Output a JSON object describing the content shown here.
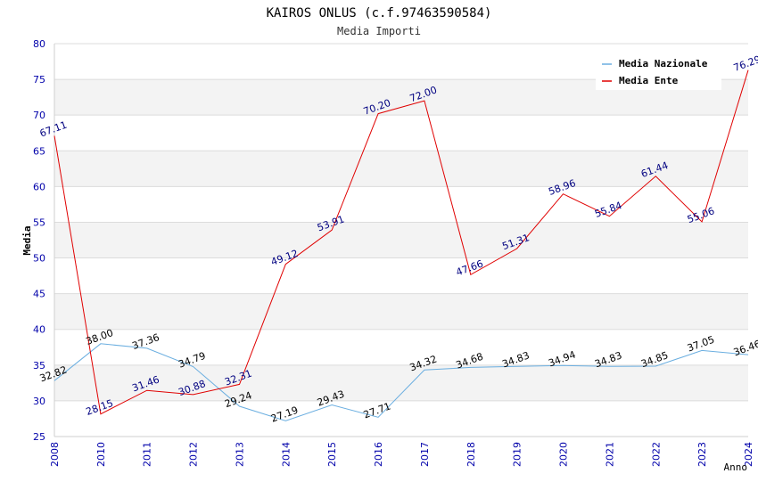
{
  "chart_data": {
    "type": "line",
    "title": "KAIROS ONLUS (c.f.97463590584)",
    "subtitle": "Media Importi",
    "ylabel": "Media",
    "xlabel": "Anno",
    "ylim": [
      25,
      80
    ],
    "yticks": [
      25,
      30,
      35,
      40,
      45,
      50,
      55,
      60,
      65,
      70,
      75,
      80
    ],
    "categories": [
      "2008",
      "2010",
      "2011",
      "2012",
      "2013",
      "2014",
      "2015",
      "2016",
      "2017",
      "2018",
      "2019",
      "2020",
      "2021",
      "2022",
      "2023",
      "2024"
    ],
    "grid": true,
    "legend_position": "top-right",
    "series": [
      {
        "name": "Media Nazionale",
        "color": "#6aaee0",
        "values": [
          32.82,
          38.0,
          37.36,
          34.79,
          29.24,
          27.19,
          29.43,
          27.71,
          34.32,
          34.68,
          34.83,
          34.94,
          34.83,
          34.85,
          37.05,
          36.46
        ],
        "labels": [
          "32.82",
          "38.00",
          "37.36",
          "34.79",
          "29.24",
          "27.19",
          "29.43",
          "27.71",
          "34.32",
          "34.68",
          "34.83",
          "34.94",
          "34.83",
          "34.85",
          "37.05",
          "36.46"
        ]
      },
      {
        "name": "Media Ente",
        "color": "#e00000",
        "values": [
          67.11,
          28.15,
          31.46,
          30.88,
          32.31,
          49.12,
          53.91,
          70.2,
          72.0,
          47.66,
          51.31,
          58.96,
          55.84,
          61.44,
          55.06,
          76.29
        ],
        "labels": [
          "67.11",
          "28.15",
          "31.46",
          "30.88",
          "32.31",
          "49.12",
          "53.91",
          "70.20",
          "72.00",
          "47.66",
          "51.31",
          "58.96",
          "55.84",
          "61.44",
          "55.06",
          "76.29"
        ]
      }
    ]
  }
}
